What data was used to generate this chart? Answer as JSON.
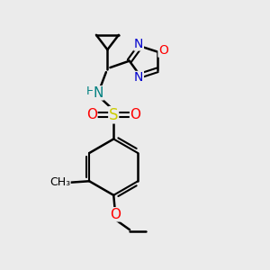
{
  "bg_color": "#ebebeb",
  "bond_color": "#000000",
  "bond_width": 1.8,
  "atom_colors": {
    "N": "#008080",
    "N_blue": "#0000cd",
    "O": "#ff0000",
    "S": "#cccc00",
    "C": "#000000",
    "H": "#008080"
  },
  "font_size": 10
}
